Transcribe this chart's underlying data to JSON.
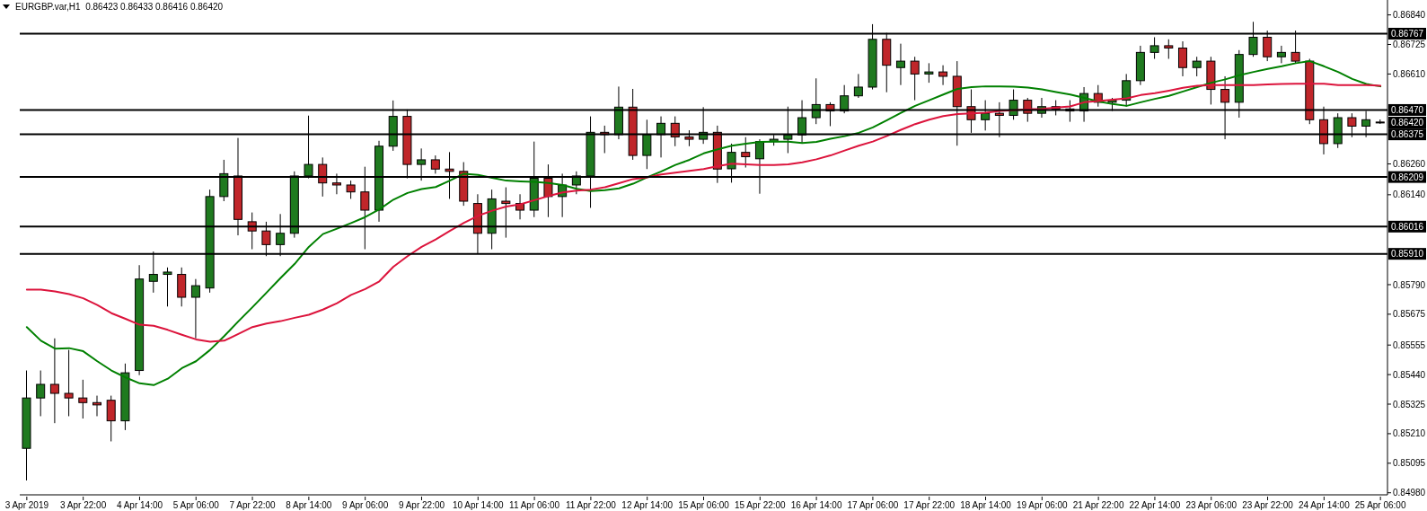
{
  "chart_data": {
    "type": "candlestick",
    "title": "EURGBP.var,H1  0.86423 0.86433 0.86416 0.86420",
    "categories": [
      "3 Apr 2019",
      null,
      null,
      null,
      "3 Apr 22:00",
      null,
      null,
      null,
      "4 Apr 14:00",
      null,
      null,
      null,
      "5 Apr 06:00",
      null,
      null,
      null,
      "7 Apr 22:00",
      null,
      null,
      null,
      "8 Apr 14:00",
      null,
      null,
      null,
      "9 Apr 06:00",
      null,
      null,
      null,
      "9 Apr 22:00",
      null,
      null,
      null,
      "10 Apr 14:00",
      null,
      null,
      null,
      "11 Apr 06:00",
      null,
      null,
      null,
      "11 Apr 22:00",
      null,
      null,
      null,
      "12 Apr 14:00",
      null,
      null,
      null,
      "15 Apr 06:00",
      null,
      null,
      null,
      "15 Apr 22:00",
      null,
      null,
      null,
      "16 Apr 14:00",
      null,
      null,
      null,
      "17 Apr 06:00",
      null,
      null,
      null,
      "17 Apr 22:00",
      null,
      null,
      null,
      "18 Apr 14:00",
      null,
      null,
      null,
      "19 Apr 06:00",
      null,
      null,
      null,
      "21 Apr 22:00",
      null,
      null,
      null,
      "22 Apr 14:00",
      null,
      null,
      null,
      "23 Apr 06:00",
      null,
      null,
      null,
      "23 Apr 22:00",
      null,
      null,
      null,
      "24 Apr 14:00",
      null,
      null,
      null,
      "25 Apr 06:00"
    ],
    "ohlc": [
      [
        0.85153,
        0.85456,
        0.85028,
        0.85349
      ],
      [
        0.85349,
        0.85456,
        0.85278,
        0.85402
      ],
      [
        0.85402,
        0.85581,
        0.85251,
        0.85367
      ],
      [
        0.85367,
        0.85536,
        0.85278,
        0.85349
      ],
      [
        0.85349,
        0.8542,
        0.85269,
        0.85331
      ],
      [
        0.85331,
        0.85358,
        0.85278,
        0.85322
      ],
      [
        0.8534,
        0.85358,
        0.8518,
        0.8526
      ],
      [
        0.8526,
        0.85483,
        0.85224,
        0.85447
      ],
      [
        0.85456,
        0.85866,
        0.85438,
        0.85812
      ],
      [
        0.85803,
        0.85919,
        0.85759,
        0.8583
      ],
      [
        0.8583,
        0.85857,
        0.85705,
        0.85839
      ],
      [
        0.8583,
        0.85857,
        0.85705,
        0.85741
      ],
      [
        0.85741,
        0.85812,
        0.85581,
        0.85786
      ],
      [
        0.85777,
        0.8616,
        0.85759,
        0.86133
      ],
      [
        0.86133,
        0.86276,
        0.86115,
        0.86222
      ],
      [
        0.86213,
        0.86361,
        0.85982,
        0.86044
      ],
      [
        0.86035,
        0.86071,
        0.85928,
        0.85999
      ],
      [
        0.85999,
        0.86035,
        0.85901,
        0.85946
      ],
      [
        0.85946,
        0.86065,
        0.85901,
        0.8599
      ],
      [
        0.8599,
        0.86231,
        0.85973,
        0.86213
      ],
      [
        0.86213,
        0.86448,
        0.86204,
        0.86258
      ],
      [
        0.86258,
        0.86285,
        0.86133,
        0.86186
      ],
      [
        0.86186,
        0.86222,
        0.86142,
        0.86178
      ],
      [
        0.86178,
        0.86195,
        0.86124,
        0.86151
      ],
      [
        0.86151,
        0.86249,
        0.85928,
        0.8608
      ],
      [
        0.8608,
        0.8635,
        0.86035,
        0.86329
      ],
      [
        0.86329,
        0.86507,
        0.86311,
        0.86445
      ],
      [
        0.86445,
        0.86472,
        0.86204,
        0.86258
      ],
      [
        0.86258,
        0.8632,
        0.86195,
        0.86276
      ],
      [
        0.86276,
        0.86293,
        0.86222,
        0.8624
      ],
      [
        0.8624,
        0.86306,
        0.86124,
        0.86231
      ],
      [
        0.86231,
        0.86267,
        0.86097,
        0.86115
      ],
      [
        0.86106,
        0.86142,
        0.8591,
        0.8599
      ],
      [
        0.8599,
        0.8616,
        0.85928,
        0.86124
      ],
      [
        0.86115,
        0.86169,
        0.85973,
        0.86106
      ],
      [
        0.86106,
        0.86142,
        0.86044,
        0.8608
      ],
      [
        0.8608,
        0.86347,
        0.86053,
        0.86204
      ],
      [
        0.86204,
        0.86258,
        0.86053,
        0.86133
      ],
      [
        0.86133,
        0.86222,
        0.86053,
        0.86178
      ],
      [
        0.86178,
        0.86231,
        0.86142,
        0.86213
      ],
      [
        0.86213,
        0.86445,
        0.86089,
        0.86383
      ],
      [
        0.86383,
        0.86409,
        0.86302,
        0.86374
      ],
      [
        0.86374,
        0.86561,
        0.86356,
        0.86481
      ],
      [
        0.86481,
        0.86552,
        0.86276,
        0.86293
      ],
      [
        0.86293,
        0.86432,
        0.8624,
        0.86374
      ],
      [
        0.86374,
        0.86445,
        0.86285,
        0.86418
      ],
      [
        0.86418,
        0.86445,
        0.86329,
        0.86365
      ],
      [
        0.86365,
        0.86391,
        0.86329,
        0.86356
      ],
      [
        0.86356,
        0.86481,
        0.86338,
        0.86383
      ],
      [
        0.86383,
        0.86409,
        0.86186,
        0.8624
      ],
      [
        0.86241,
        0.86339,
        0.86187,
        0.86305
      ],
      [
        0.86305,
        0.86364,
        0.86246,
        0.86288
      ],
      [
        0.8628,
        0.86356,
        0.86144,
        0.86347
      ],
      [
        0.86347,
        0.86373,
        0.86331,
        0.86356
      ],
      [
        0.86356,
        0.86483,
        0.86302,
        0.86373
      ],
      [
        0.86373,
        0.86508,
        0.86339,
        0.8644
      ],
      [
        0.8644,
        0.86593,
        0.86415,
        0.86491
      ],
      [
        0.86491,
        0.865,
        0.86407,
        0.86466
      ],
      [
        0.86466,
        0.86567,
        0.86457,
        0.86525
      ],
      [
        0.86525,
        0.8661,
        0.86517,
        0.86559
      ],
      [
        0.86559,
        0.86804,
        0.8655,
        0.86745
      ],
      [
        0.86745,
        0.8677,
        0.86539,
        0.86644
      ],
      [
        0.86635,
        0.86728,
        0.86567,
        0.8666
      ],
      [
        0.8666,
        0.86677,
        0.86508,
        0.8661
      ],
      [
        0.8661,
        0.86652,
        0.86576,
        0.86618
      ],
      [
        0.86618,
        0.86644,
        0.86567,
        0.86601
      ],
      [
        0.86601,
        0.8666,
        0.86331,
        0.86483
      ],
      [
        0.86483,
        0.8655,
        0.86381,
        0.86432
      ],
      [
        0.86432,
        0.86508,
        0.8639,
        0.86457
      ],
      [
        0.86457,
        0.865,
        0.86364,
        0.86449
      ],
      [
        0.86449,
        0.8655,
        0.86432,
        0.86508
      ],
      [
        0.86508,
        0.86517,
        0.86424,
        0.86457
      ],
      [
        0.86457,
        0.86517,
        0.8644,
        0.86483
      ],
      [
        0.86483,
        0.86508,
        0.86449,
        0.86474
      ],
      [
        0.86474,
        0.86508,
        0.86424,
        0.86466
      ],
      [
        0.86466,
        0.86559,
        0.86424,
        0.86534
      ],
      [
        0.86534,
        0.86567,
        0.86483,
        0.865
      ],
      [
        0.865,
        0.86517,
        0.86466,
        0.86508
      ],
      [
        0.86508,
        0.8661,
        0.86483,
        0.86584
      ],
      [
        0.86584,
        0.8672,
        0.86567,
        0.86694
      ],
      [
        0.86694,
        0.86753,
        0.86669,
        0.8672
      ],
      [
        0.8672,
        0.86745,
        0.86669,
        0.86711
      ],
      [
        0.86711,
        0.86737,
        0.86601,
        0.86635
      ],
      [
        0.86635,
        0.86677,
        0.86601,
        0.8666
      ],
      [
        0.8666,
        0.86677,
        0.86491,
        0.8655
      ],
      [
        0.8655,
        0.86601,
        0.86356,
        0.865
      ],
      [
        0.865,
        0.86703,
        0.8644,
        0.86686
      ],
      [
        0.86686,
        0.86813,
        0.86677,
        0.86753
      ],
      [
        0.86753,
        0.86779,
        0.8666,
        0.86677
      ],
      [
        0.86677,
        0.8672,
        0.86652,
        0.86694
      ],
      [
        0.86694,
        0.86779,
        0.86652,
        0.8666
      ],
      [
        0.8666,
        0.86669,
        0.86415,
        0.86432
      ],
      [
        0.86432,
        0.86483,
        0.86297,
        0.86339
      ],
      [
        0.86339,
        0.86457,
        0.86322,
        0.8644
      ],
      [
        0.8644,
        0.86457,
        0.86364,
        0.86407
      ],
      [
        0.86407,
        0.86466,
        0.86364,
        0.86432
      ],
      [
        0.86423,
        0.86433,
        0.86416,
        0.8642
      ]
    ],
    "colors": [
      "#1f7a1f",
      "#1f7a1f",
      "#c0262a",
      "#c0262a",
      "#c0262a",
      "#c0262a",
      "#c0262a",
      "#1f7a1f",
      "#1f7a1f",
      "#1f7a1f",
      "#1f7a1f",
      "#c0262a",
      "#1f7a1f",
      "#1f7a1f",
      "#1f7a1f",
      "#c0262a",
      "#c0262a",
      "#c0262a",
      "#1f7a1f",
      "#1f7a1f",
      "#1f7a1f",
      "#c0262a",
      "#c0262a",
      "#c0262a",
      "#c0262a",
      "#1f7a1f",
      "#1f7a1f",
      "#c0262a",
      "#1f7a1f",
      "#c0262a",
      "#c0262a",
      "#c0262a",
      "#c0262a",
      "#1f7a1f",
      "#c0262a",
      "#c0262a",
      "#1f7a1f",
      "#c0262a",
      "#1f7a1f",
      "#1f7a1f",
      "#1f7a1f",
      "#c0262a",
      "#1f7a1f",
      "#c0262a",
      "#1f7a1f",
      "#1f7a1f",
      "#c0262a",
      "#c0262a",
      "#1f7a1f",
      "#c0262a",
      "#1f7a1f",
      "#c0262a",
      "#1f7a1f",
      "#1f7a1f",
      "#1f7a1f",
      "#1f7a1f",
      "#1f7a1f",
      "#c0262a",
      "#1f7a1f",
      "#1f7a1f",
      "#1f7a1f",
      "#c0262a",
      "#1f7a1f",
      "#c0262a",
      "#1f7a1f",
      "#c0262a",
      "#c0262a",
      "#c0262a",
      "#1f7a1f",
      "#c0262a",
      "#1f7a1f",
      "#c0262a",
      "#1f7a1f",
      "#c0262a",
      "#c0262a",
      "#1f7a1f",
      "#c0262a",
      "#1f7a1f",
      "#1f7a1f",
      "#1f7a1f",
      "#1f7a1f",
      "#c0262a",
      "#c0262a",
      "#1f7a1f",
      "#c0262a",
      "#c0262a",
      "#1f7a1f",
      "#1f7a1f",
      "#c0262a",
      "#1f7a1f",
      "#c0262a",
      "#c0262a",
      "#c0262a",
      "#1f7a1f",
      "#c0262a",
      "#1f7a1f",
      "#c0262a"
    ],
    "series": [
      {
        "type": "line",
        "color": "#008000",
        "values": [
          0.85625,
          0.85572,
          0.85541,
          0.85543,
          0.85531,
          0.85492,
          0.85456,
          0.85429,
          0.85406,
          0.85399,
          0.85424,
          0.85465,
          0.85492,
          0.85536,
          0.8559,
          0.85647,
          0.85702,
          0.85759,
          0.85816,
          0.85871,
          0.85937,
          0.85987,
          0.86008,
          0.8603,
          0.86053,
          0.86083,
          0.86121,
          0.86147,
          0.86162,
          0.8617,
          0.86195,
          0.86222,
          0.86217,
          0.86206,
          0.86195,
          0.86192,
          0.8619,
          0.86186,
          0.86178,
          0.86163,
          0.86154,
          0.86158,
          0.86165,
          0.86183,
          0.86208,
          0.86231,
          0.86256,
          0.86276,
          0.86301,
          0.86317,
          0.86331,
          0.86339,
          0.86346,
          0.86347,
          0.86347,
          0.86341,
          0.86346,
          0.86358,
          0.86368,
          0.86381,
          0.86402,
          0.8643,
          0.86459,
          0.86486,
          0.86508,
          0.8653,
          0.86552,
          0.86559,
          0.86562,
          0.86562,
          0.86561,
          0.86557,
          0.8655,
          0.8654,
          0.8653,
          0.86517,
          0.86503,
          0.86493,
          0.86486,
          0.865,
          0.86513,
          0.86525,
          0.86542,
          0.86559,
          0.86576,
          0.86589,
          0.86605,
          0.86618,
          0.8663,
          0.8664,
          0.86652,
          0.8666,
          0.8664,
          0.86618,
          0.86591,
          0.86571,
          0.86562
        ]
      },
      {
        "type": "line",
        "color": "#dc143c",
        "values": [
          0.85771,
          0.85771,
          0.85764,
          0.85753,
          0.85737,
          0.85711,
          0.85679,
          0.85657,
          0.85634,
          0.8563,
          0.85614,
          0.85595,
          0.85577,
          0.85568,
          0.85572,
          0.85598,
          0.85625,
          0.85639,
          0.85648,
          0.85661,
          0.85673,
          0.85693,
          0.85718,
          0.8575,
          0.85773,
          0.85803,
          0.8586,
          0.85901,
          0.85937,
          0.85966,
          0.85999,
          0.86031,
          0.86058,
          0.86078,
          0.86094,
          0.86103,
          0.86119,
          0.86135,
          0.86149,
          0.86156,
          0.8616,
          0.86169,
          0.86185,
          0.86201,
          0.86208,
          0.86219,
          0.86226,
          0.86233,
          0.8624,
          0.86251,
          0.86261,
          0.86258,
          0.86256,
          0.86256,
          0.86258,
          0.86266,
          0.86278,
          0.86293,
          0.86312,
          0.86331,
          0.86347,
          0.86369,
          0.86393,
          0.86415,
          0.86432,
          0.86446,
          0.86454,
          0.86457,
          0.86459,
          0.86466,
          0.86469,
          0.86473,
          0.86474,
          0.86479,
          0.86484,
          0.865,
          0.86505,
          0.8651,
          0.86515,
          0.86528,
          0.86535,
          0.86545,
          0.86556,
          0.86564,
          0.86567,
          0.86567,
          0.86567,
          0.86567,
          0.86569,
          0.86571,
          0.86572,
          0.86572,
          0.86572,
          0.86567,
          0.86567,
          0.86567,
          0.86564
        ]
      }
    ],
    "ylim": [
      0.84972,
      0.86898
    ],
    "yticks": [
      {
        "value": 0.8498,
        "label": "0.84980"
      },
      0.85095,
      {
        "value": 0.8521,
        "label": "0.85210"
      },
      0.85325,
      {
        "value": 0.8544,
        "label": "0.85440"
      },
      0.85555,
      0.85675,
      {
        "value": 0.8579,
        "label": "0.85790"
      },
      {
        "value": 0.8614,
        "label": "0.86140"
      },
      {
        "value": 0.8626,
        "label": "0.86260"
      },
      {
        "value": 0.8661,
        "label": "0.86610"
      },
      0.86725,
      {
        "value": 0.8684,
        "label": "0.86840"
      }
    ],
    "ref_lines": [
      {
        "axis": "y",
        "value": 0.86767,
        "label": "0.86767",
        "color": "#000000"
      },
      {
        "axis": "y",
        "value": 0.8647,
        "label": "0.86470",
        "color": "#000000"
      },
      {
        "axis": "y",
        "value": 0.86375,
        "label": "0.86375",
        "color": "#000000"
      },
      {
        "axis": "y",
        "value": 0.86209,
        "label": "0.86209",
        "color": "#000000"
      },
      {
        "axis": "y",
        "value": 0.86016,
        "label": "0.86016",
        "color": "#000000"
      },
      {
        "axis": "y",
        "value": 0.8591,
        "label": "0.85910",
        "color": "#000000"
      }
    ],
    "annotations": [
      "0.86420"
    ]
  }
}
